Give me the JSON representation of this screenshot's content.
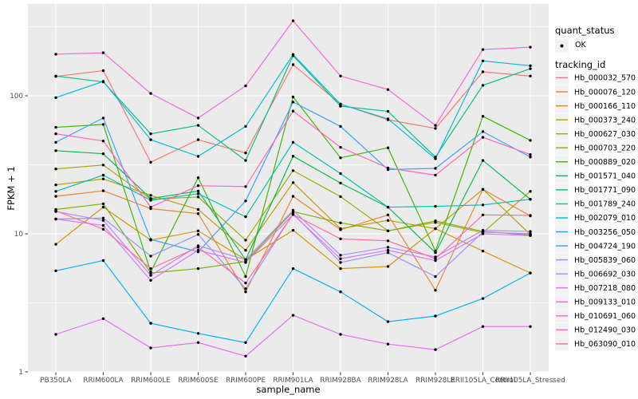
{
  "chart_data": {
    "type": "line",
    "title": "",
    "xlabel": "sample_name",
    "ylabel": "FPKM + 1",
    "y_scale": "log10",
    "y_ticks": [
      1,
      10,
      100
    ],
    "y_minor_ticks": [
      3.16,
      31.6,
      316
    ],
    "ylim": [
      1,
      460
    ],
    "grid": true,
    "legend_position": "right",
    "x_categories": [
      "PB350LA",
      "RRIM600LA",
      "RRIM600LE",
      "RRIM600SE",
      "RRIM600PE",
      "RRIM901LA",
      "RRIM928BA",
      "RRIM928LA",
      "RRIM928LE",
      "RRII105LA_Control",
      "RRII105LA_Stressed"
    ],
    "legend": {
      "quant_status_title": "quant_status",
      "quant_status_items": [
        "OK"
      ],
      "tracking_title": "tracking_id"
    },
    "style": {
      "panel_bg": "#EBEBEB",
      "grid_color": "#FFFFFF",
      "axis_text_color": "#4D4D4D",
      "tick_color": "#333333",
      "point_color": "#000000",
      "legend_key_bg": "#F2F2F2"
    },
    "series": [
      {
        "name": "Hb_000032_570",
        "color": "#F8766D",
        "values": [
          138,
          152,
          33,
          48,
          38.5,
          168,
          87,
          67,
          58,
          149,
          139
        ]
      },
      {
        "name": "Hb_000076_120",
        "color": "#EA8331",
        "values": [
          18.7,
          20.5,
          15.2,
          14,
          3.8,
          18.7,
          10.7,
          13.7,
          3.9,
          21,
          13.5
        ]
      },
      {
        "name": "Hb_000166_110",
        "color": "#D89000",
        "values": [
          8.4,
          15.6,
          9,
          10.5,
          6.5,
          10.6,
          5.6,
          5.8,
          10.9,
          7.5,
          5.2
        ]
      },
      {
        "name": "Hb_000373_240",
        "color": "#C09B00",
        "values": [
          22.6,
          25,
          19,
          15,
          7.6,
          23.5,
          10.9,
          12.5,
          10.9,
          21,
          9.9
        ]
      },
      {
        "name": "Hb_000627_030",
        "color": "#A3A500",
        "values": [
          29.5,
          31.5,
          17.8,
          18.5,
          9,
          28.7,
          18.6,
          10.5,
          12.1,
          10.2,
          20.3
        ]
      },
      {
        "name": "Hb_000703_220",
        "color": "#7CAE00",
        "values": [
          15,
          16.5,
          5.2,
          5.6,
          6.3,
          14.5,
          12,
          10.5,
          12.4,
          10.4,
          9.8
        ]
      },
      {
        "name": "Hb_000889_020",
        "color": "#39B600",
        "values": [
          59,
          62,
          5.3,
          25.5,
          4.9,
          98,
          35.5,
          42,
          7.5,
          71,
          47.5
        ]
      },
      {
        "name": "Hb_001571_040",
        "color": "#00BB4E",
        "values": [
          40,
          38,
          18,
          20.4,
          6.5,
          36.5,
          23.3,
          15.6,
          7.3,
          34,
          17.8
        ]
      },
      {
        "name": "Hb_001771_090",
        "color": "#00C087",
        "values": [
          139,
          126,
          53,
          61,
          34,
          195,
          84,
          77,
          36,
          119,
          157
        ]
      },
      {
        "name": "Hb_001789_240",
        "color": "#00C0B2",
        "values": [
          20.3,
          26.6,
          17.5,
          19.5,
          13.3,
          46,
          27.3,
          15.6,
          15.8,
          16.2,
          17.8
        ]
      },
      {
        "name": "Hb_002079_010",
        "color": "#00BCD8",
        "values": [
          97,
          127,
          48,
          36.4,
          60,
          199,
          87,
          68,
          35,
          179,
          165
        ]
      },
      {
        "name": "Hb_003256_050",
        "color": "#00B0F6",
        "values": [
          5.4,
          6.4,
          2.25,
          1.9,
          1.63,
          5.6,
          3.8,
          2.31,
          2.54,
          3.4,
          5.2
        ]
      },
      {
        "name": "Hb_004724_190",
        "color": "#35A2FF",
        "values": [
          46,
          69,
          9.1,
          7.4,
          17.3,
          90,
          60,
          29.2,
          29.8,
          55,
          36
        ]
      },
      {
        "name": "Hb_005839_060",
        "color": "#9590FF",
        "values": [
          12.8,
          13,
          6.9,
          9.9,
          4,
          14,
          6.2,
          7.3,
          4.9,
          10.3,
          10
        ]
      },
      {
        "name": "Hb_006692_030",
        "color": "#B983FF",
        "values": [
          14.5,
          12.5,
          5,
          8.2,
          6.5,
          14.8,
          7,
          8,
          6.8,
          10.6,
          10.4
        ]
      },
      {
        "name": "Hb_007218_080",
        "color": "#D874FD",
        "values": [
          12.8,
          11.5,
          4.6,
          7.6,
          6.2,
          13.8,
          6.6,
          7.6,
          6.4,
          10,
          9.7
        ]
      },
      {
        "name": "Hb_009133_010",
        "color": "#E76BF3",
        "values": [
          1.87,
          2.43,
          1.49,
          1.63,
          1.3,
          2.57,
          1.87,
          1.59,
          1.45,
          2.13,
          2.13
        ]
      },
      {
        "name": "Hb_010691_060",
        "color": "#FA62DB",
        "values": [
          200,
          205,
          104,
          69,
          118,
          349,
          139,
          111,
          61,
          216,
          225
        ]
      },
      {
        "name": "Hb_012490_030",
        "color": "#FF62BC",
        "values": [
          53,
          47,
          15.6,
          22.3,
          22,
          77.5,
          42.3,
          30,
          26.6,
          50,
          37.5
        ]
      },
      {
        "name": "Hb_063090_010",
        "color": "#FF6A9A",
        "values": [
          14.7,
          10.8,
          5.6,
          8,
          4.4,
          13.8,
          9.2,
          8.9,
          6.6,
          13.7,
          13.6
        ]
      }
    ]
  }
}
